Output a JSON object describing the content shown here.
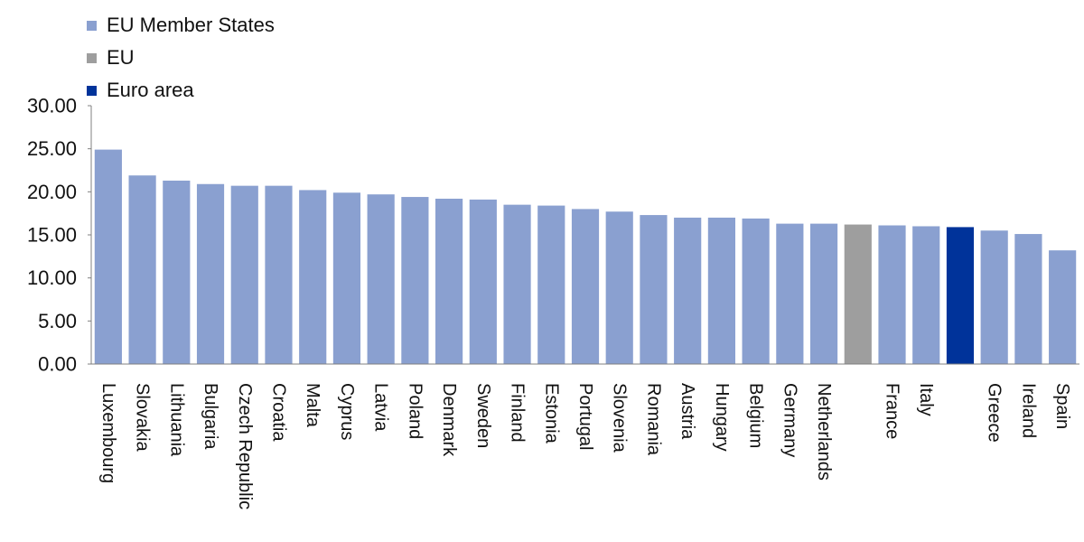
{
  "legend": [
    {
      "label": "EU Member States",
      "color": "#8aa0d0"
    },
    {
      "label": "EU",
      "color": "#9e9e9e"
    },
    {
      "label": "Euro area",
      "color": "#00339a"
    }
  ],
  "chart_data": {
    "type": "bar",
    "title": "",
    "xlabel": "",
    "ylabel": "",
    "ylim": [
      0,
      30
    ],
    "yticks": [
      "0.00",
      "5.00",
      "10.00",
      "15.00",
      "20.00",
      "25.00",
      "30.00"
    ],
    "grid": false,
    "legend_position": "top-left",
    "categories": [
      "Luxembourg",
      "Slovakia",
      "Lithuania",
      "Bulgaria",
      "Czech Republic",
      "Croatia",
      "Malta",
      "Cyprus",
      "Latvia",
      "Poland",
      "Denmark",
      "Sweden",
      "Finland",
      "Estonia",
      "Portugal",
      "Slovenia",
      "Romania",
      "Austria",
      "Hungary",
      "Belgium",
      "Germany",
      "Netherlands",
      "",
      "France",
      "Italy",
      "",
      "Greece",
      "Ireland",
      "Spain"
    ],
    "values": [
      24.9,
      21.9,
      21.3,
      20.9,
      20.7,
      20.7,
      20.2,
      19.9,
      19.7,
      19.4,
      19.2,
      19.1,
      18.5,
      18.4,
      18.0,
      17.7,
      17.3,
      17.0,
      17.0,
      16.9,
      16.3,
      16.3,
      16.2,
      16.1,
      16.0,
      15.9,
      15.5,
      15.1,
      13.2
    ],
    "groups": [
      "EU Member States",
      "EU Member States",
      "EU Member States",
      "EU Member States",
      "EU Member States",
      "EU Member States",
      "EU Member States",
      "EU Member States",
      "EU Member States",
      "EU Member States",
      "EU Member States",
      "EU Member States",
      "EU Member States",
      "EU Member States",
      "EU Member States",
      "EU Member States",
      "EU Member States",
      "EU Member States",
      "EU Member States",
      "EU Member States",
      "EU Member States",
      "EU Member States",
      "EU",
      "EU Member States",
      "EU Member States",
      "Euro area",
      "EU Member States",
      "EU Member States",
      "EU Member States"
    ]
  }
}
